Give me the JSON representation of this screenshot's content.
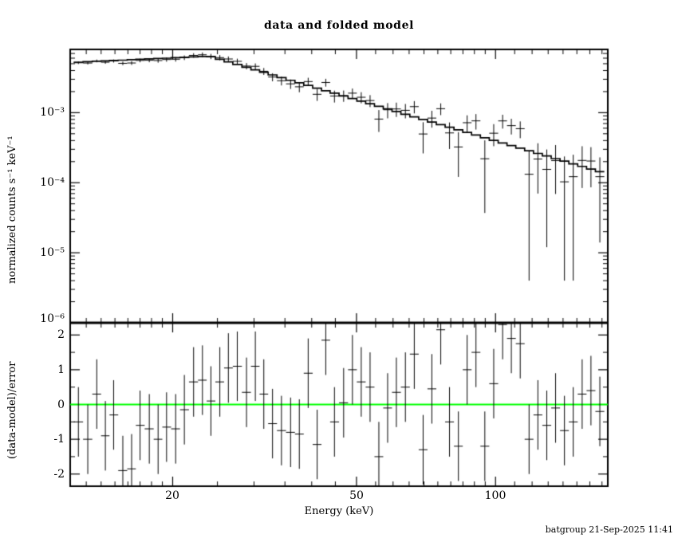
{
  "footer": "batgroup 21-Sep-2025 11:41",
  "chart_data": {
    "type": "scatter",
    "title": "data and folded model",
    "xlabel": "Energy (keV)",
    "xscale": "log",
    "xlim": [
      12,
      175
    ],
    "xticks": [
      {
        "value": 20,
        "label": "20"
      },
      {
        "value": 50,
        "label": "50"
      },
      {
        "value": 100,
        "label": "100"
      }
    ],
    "xticks_minor": [
      13,
      14,
      15,
      16,
      17,
      18,
      19,
      25,
      30,
      35,
      40,
      45,
      55,
      60,
      65,
      70,
      75,
      80,
      85,
      90,
      95,
      110,
      120,
      130,
      140,
      150,
      160,
      170
    ],
    "top_panel": {
      "ylabel": "normalized counts s⁻¹ keV⁻¹",
      "yscale": "log",
      "ylim": [
        1e-06,
        0.008
      ],
      "yticks": [
        {
          "value": 0.001,
          "label": "10⁻³"
        },
        {
          "value": 0.0001,
          "label": "10⁻⁴"
        },
        {
          "value": 1e-05,
          "label": "10⁻⁵"
        },
        {
          "value": 1e-06,
          "label": "10⁻⁶"
        }
      ],
      "series": [
        {
          "name": "data",
          "style": "errorbar-cross",
          "color": "#000000",
          "x": [
            12.5,
            13.1,
            13.7,
            14.3,
            14.9,
            15.6,
            16.3,
            17.0,
            17.8,
            18.6,
            19.4,
            20.3,
            21.2,
            22.2,
            23.2,
            24.2,
            25.3,
            26.4,
            27.6,
            28.9,
            30.2,
            31.5,
            32.9,
            34.4,
            36.0,
            37.6,
            39.3,
            41.1,
            42.9,
            44.8,
            46.9,
            49.0,
            51.2,
            53.5,
            55.9,
            58.4,
            61.0,
            63.8,
            66.7,
            69.7,
            72.8,
            76.1,
            79.5,
            83.1,
            86.8,
            90.7,
            94.8,
            99.1,
            103.6,
            108.2,
            113.1,
            118.2,
            123.5,
            129.1,
            134.9,
            141.0,
            147.3,
            154.0,
            160.9,
            168.2
          ],
          "y": [
            0.00516,
            0.00511,
            0.00548,
            0.00525,
            0.00547,
            0.00506,
            0.00512,
            0.00557,
            0.0056,
            0.00555,
            0.00574,
            0.00579,
            0.0061,
            0.00657,
            0.00671,
            0.00636,
            0.00611,
            0.00584,
            0.00541,
            0.00463,
            0.00459,
            0.0039,
            0.00323,
            0.00286,
            0.00258,
            0.00234,
            0.00278,
            0.00183,
            0.0027,
            0.00173,
            0.00175,
            0.0019,
            0.00166,
            0.00149,
            0.00081,
            0.0011,
            0.00113,
            0.00108,
            0.00122,
            0.000496,
            0.000837,
            0.00114,
            0.000514,
            0.000324,
            0.000719,
            0.000764,
            0.00022,
            0.000509,
            0.000763,
            0.000653,
            0.000591,
            0.000132,
            0.000218,
            0.000155,
            0.000207,
            0.000103,
            0.000122,
            0.000208,
            0.000204,
            0.000122
          ],
          "yerr": [
            0.000213,
            0.000228,
            0.000244,
            0.000259,
            0.000275,
            0.000294,
            0.000314,
            0.000333,
            0.000356,
            0.00038,
            0.000403,
            0.000431,
            0.000459,
            0.000491,
            0.000524,
            0.000546,
            0.000526,
            0.000509,
            0.000491,
            0.000474,
            0.000457,
            0.000443,
            0.000427,
            0.000412,
            0.000397,
            0.000384,
            0.000371,
            0.000357,
            0.000345,
            0.000334,
            0.000321,
            0.00031,
            0.0003,
            0.000289,
            0.000279,
            0.00027,
            0.000261,
            0.000251,
            0.000243,
            0.000234,
            0.000226,
            0.000218,
            0.000211,
            0.000203,
            0.000197,
            0.00019,
            0.000183,
            0.000177,
            0.000171,
            0.000165,
            0.000159,
            0.000154,
            0.000148,
            0.000143,
            0.000138,
            0.000134,
            0.000129,
            0.000124,
            0.000118,
            0.000108
          ]
        },
        {
          "name": "folded model",
          "style": "step",
          "color": "#000000",
          "y": [
            0.00526,
            0.00534,
            0.00541,
            0.00548,
            0.00555,
            0.00562,
            0.0057,
            0.00577,
            0.00585,
            0.00593,
            0.006,
            0.00609,
            0.00617,
            0.00625,
            0.00634,
            0.0063,
            0.00577,
            0.00531,
            0.00487,
            0.00446,
            0.00409,
            0.00377,
            0.00346,
            0.00317,
            0.0029,
            0.00267,
            0.00245,
            0.00224,
            0.00206,
            0.0019,
            0.00173,
            0.00159,
            0.00146,
            0.00134,
            0.00123,
            0.00113,
            0.00104,
            0.000951,
            0.000872,
            0.0008,
            0.000735,
            0.000674,
            0.000619,
            0.000568,
            0.000522,
            0.000479,
            0.000439,
            0.000403,
            0.00037,
            0.00034,
            0.000312,
            0.000286,
            0.000262,
            0.000241,
            0.000221,
            0.000203,
            0.000186,
            0.000171,
            0.000157,
            0.000144
          ]
        }
      ]
    },
    "bottom_panel": {
      "ylabel": "(data-model)/error",
      "yscale": "linear",
      "ylim": [
        -2.35,
        2.35
      ],
      "yticks": [
        {
          "value": 2,
          "label": "2"
        },
        {
          "value": 1,
          "label": "1"
        },
        {
          "value": 0,
          "label": "0"
        },
        {
          "value": -1,
          "label": "-1"
        },
        {
          "value": -2,
          "label": "-2"
        }
      ],
      "zero_line": {
        "value": 0,
        "color": "#00ff00"
      },
      "series": [
        {
          "name": "residuals",
          "style": "errorbar-cross",
          "color": "#000000",
          "yerr_const": 1,
          "y": [
            -0.5,
            -1.0,
            0.3,
            -0.9,
            -0.3,
            -1.9,
            -1.85,
            -0.6,
            -0.7,
            -1.0,
            -0.65,
            -0.7,
            -0.15,
            0.65,
            0.7,
            0.1,
            0.65,
            1.05,
            1.1,
            0.35,
            1.1,
            0.3,
            -0.55,
            -0.75,
            -0.8,
            -0.85,
            0.9,
            -1.15,
            1.85,
            -0.5,
            0.05,
            1.0,
            0.65,
            0.5,
            -1.5,
            -0.1,
            0.35,
            0.5,
            1.45,
            -1.3,
            0.45,
            2.15,
            -0.5,
            -1.2,
            1.0,
            1.5,
            -1.2,
            0.6,
            2.3,
            1.9,
            1.75,
            -1.0,
            -0.3,
            -0.6,
            -0.1,
            -0.75,
            -0.5,
            0.3,
            0.4,
            -0.2
          ]
        }
      ]
    }
  }
}
